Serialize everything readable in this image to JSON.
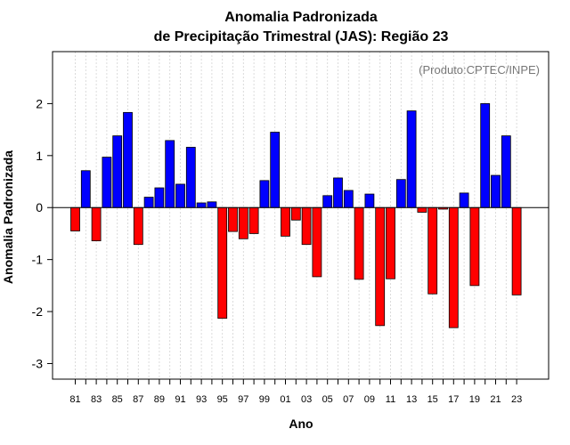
{
  "chart_data": {
    "type": "bar",
    "title": "Anomalia Padronizada",
    "subtitle": "de Precipitação Trimestral (JAS): Região 23",
    "xlabel": "Ano",
    "ylabel": "Anomalia Padronizada",
    "annotation": "(Produto:CPTEC/INPE)",
    "ylim": [
      -3.3,
      3.0
    ],
    "yticks": [
      -3,
      -2,
      -1,
      0,
      1,
      2
    ],
    "ytick_labels": [
      "-3",
      "-2",
      "-1",
      "0",
      "1",
      "2"
    ],
    "xtick_labels": [
      "81",
      "83",
      "85",
      "87",
      "89",
      "91",
      "93",
      "95",
      "97",
      "99",
      "01",
      "03",
      "05",
      "07",
      "09",
      "11",
      "13",
      "15",
      "17",
      "19",
      "21",
      "23"
    ],
    "categories": [
      "1981",
      "1982",
      "1983",
      "1984",
      "1985",
      "1986",
      "1987",
      "1988",
      "1989",
      "1990",
      "1991",
      "1992",
      "1993",
      "1994",
      "1995",
      "1996",
      "1997",
      "1998",
      "1999",
      "2000",
      "2001",
      "2002",
      "2003",
      "2004",
      "2005",
      "2006",
      "2007",
      "2008",
      "2009",
      "2010",
      "2011",
      "2012",
      "2013",
      "2014",
      "2015",
      "2016",
      "2017",
      "2018",
      "2019",
      "2020",
      "2021",
      "2022",
      "2023"
    ],
    "values": [
      -0.45,
      0.71,
      -0.64,
      0.97,
      1.38,
      1.83,
      -0.71,
      0.2,
      0.38,
      1.29,
      0.45,
      1.16,
      0.09,
      0.11,
      -2.13,
      -0.46,
      -0.6,
      -0.5,
      0.52,
      1.45,
      -0.55,
      -0.24,
      -0.71,
      -1.33,
      0.23,
      0.57,
      0.33,
      -1.38,
      0.26,
      -2.27,
      -1.37,
      0.54,
      1.86,
      -0.09,
      -1.66,
      -0.03,
      -2.31,
      0.28,
      -1.5,
      2.0,
      0.62,
      1.38,
      -1.68
    ],
    "colors": {
      "positive": "#0000ff",
      "negative": "#ff0000",
      "grid": "#d3d3d3"
    },
    "grid": true
  }
}
